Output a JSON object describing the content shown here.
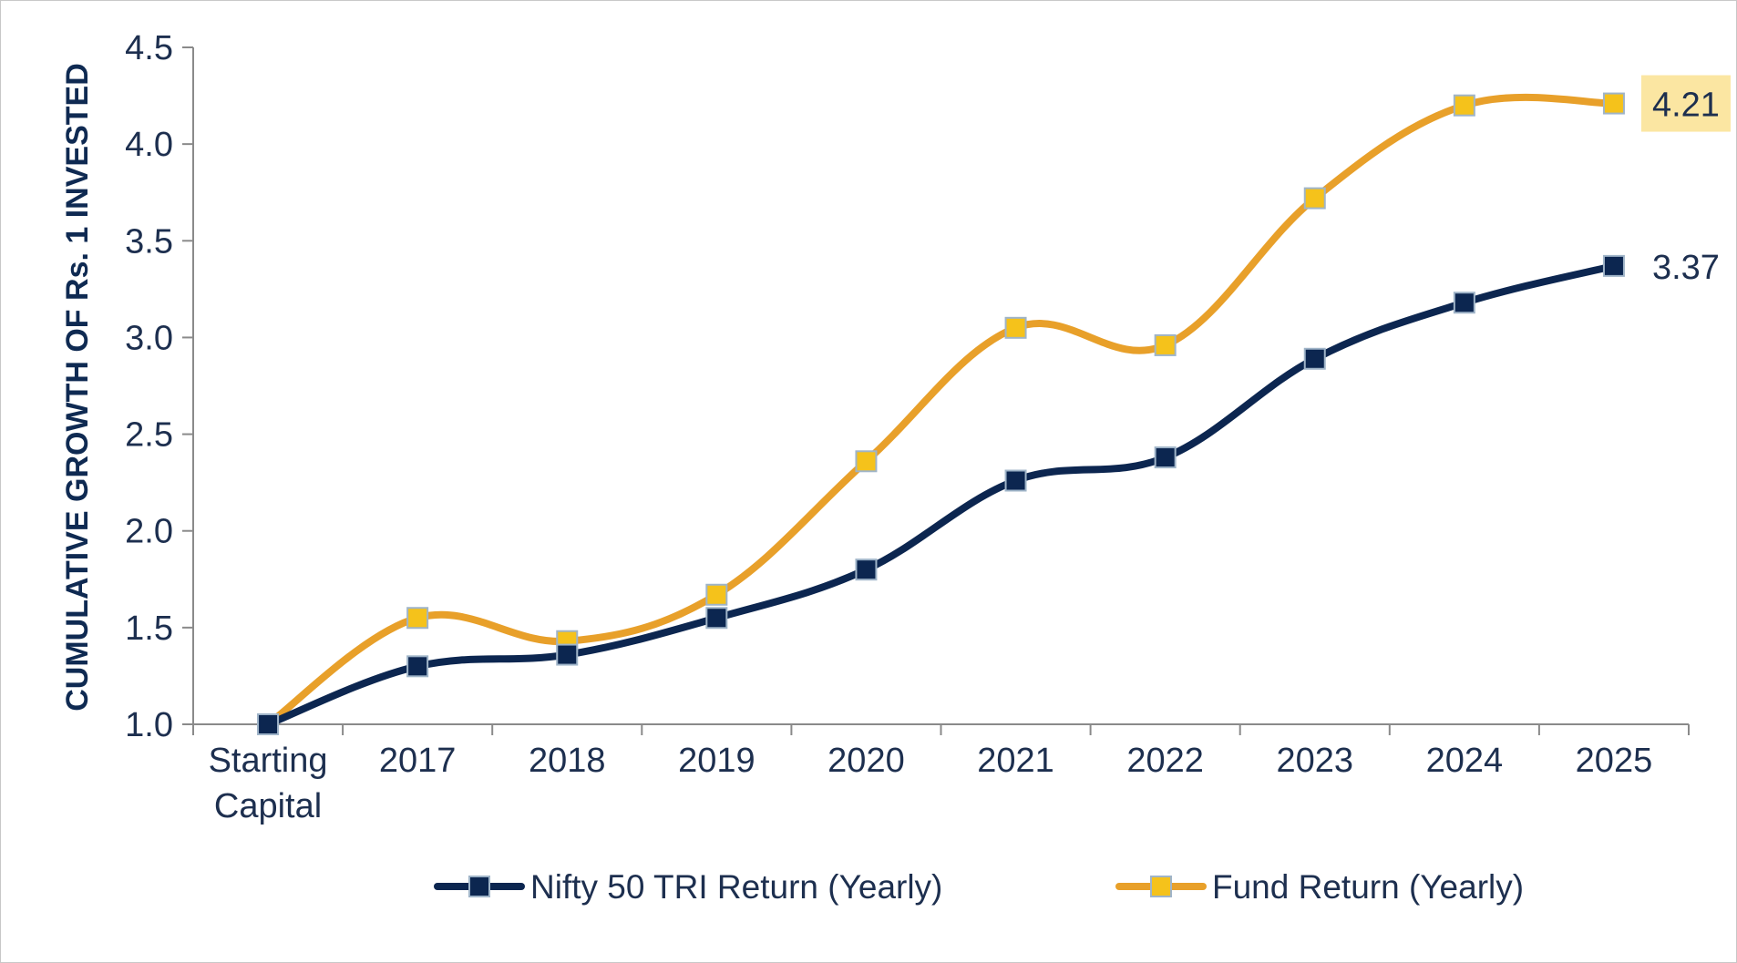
{
  "chart_data": {
    "type": "line",
    "title": "",
    "xlabel": "",
    "ylabel": "CUMULATIVE GROWTH OF Rs. 1 INVESTED",
    "categories": [
      "Starting Capital",
      "2017",
      "2018",
      "2019",
      "2020",
      "2021",
      "2022",
      "2023",
      "2024",
      "2025"
    ],
    "ylim": [
      1.0,
      4.5
    ],
    "yticks": [
      "1.0",
      "1.5",
      "2.0",
      "2.5",
      "3.0",
      "3.5",
      "4.0",
      "4.5"
    ],
    "grid": false,
    "legend_position": "bottom",
    "series": [
      {
        "name": "Nifty 50 TRI Return (Yearly)",
        "color": "#0c2650",
        "marker_color": "#0c2650",
        "values": [
          1.0,
          1.3,
          1.36,
          1.55,
          1.8,
          2.26,
          2.38,
          2.89,
          3.18,
          3.37
        ],
        "end_label": "3.37"
      },
      {
        "name": "Fund Return (Yearly)",
        "color": "#e8a02a",
        "marker_color": "#f5c21b",
        "values": [
          1.0,
          1.55,
          1.43,
          1.67,
          2.36,
          3.05,
          2.96,
          3.72,
          4.2,
          4.21
        ],
        "end_label": "4.21"
      }
    ],
    "highlight_color": "#fbe6a2"
  }
}
